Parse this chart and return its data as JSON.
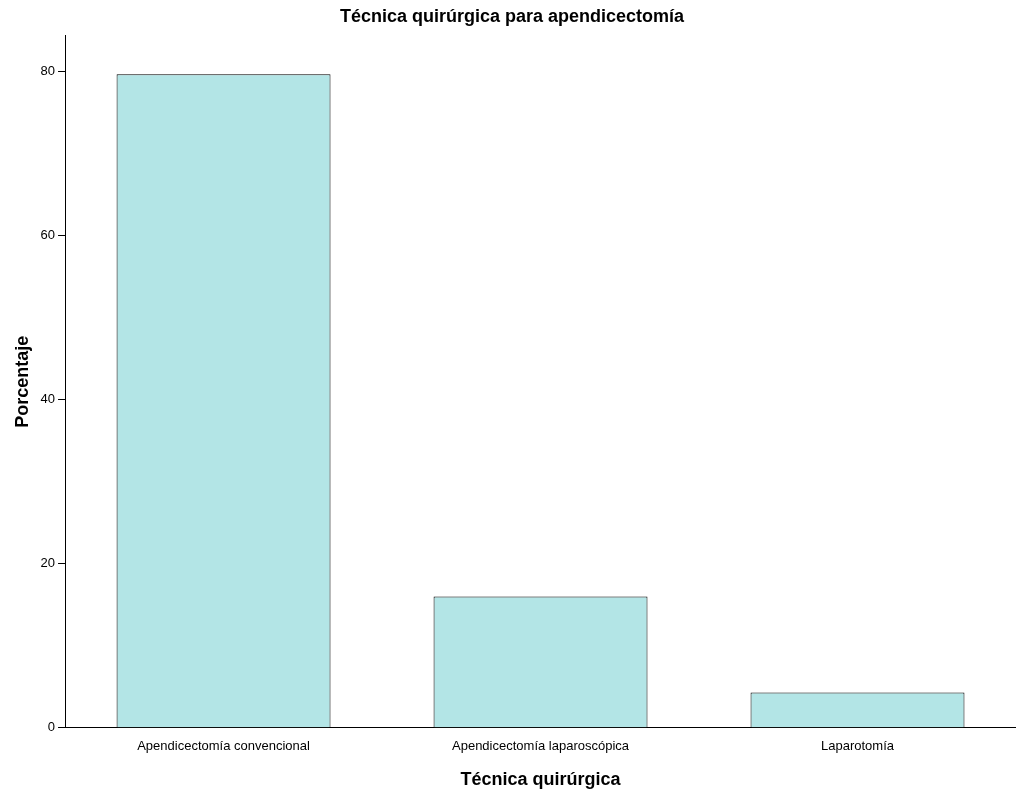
{
  "chart_data": {
    "type": "bar",
    "title": "Técnica quirúrgica para apendicectomía",
    "xlabel": "Técnica quirúrgica",
    "ylabel": "Porcentaje",
    "categories": [
      "Apendicectomía convencional",
      "Apendicectomía laparoscópica",
      "Laparotomía"
    ],
    "values": [
      79.7,
      16.0,
      4.3
    ],
    "color": "#b3e5e6",
    "ylim": [
      0,
      84.4
    ],
    "yticks": [
      0,
      20,
      40,
      60,
      80
    ],
    "grid": false,
    "legend": false
  }
}
